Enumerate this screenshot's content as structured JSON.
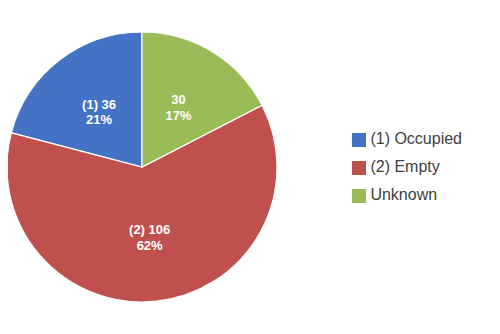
{
  "chart_data": {
    "type": "pie",
    "categories": [
      "(1) Occupied",
      "(2) Empty",
      "Unknown"
    ],
    "values": [
      36,
      106,
      30
    ],
    "value_labels": [
      "(1) 36",
      "(2) 106",
      "30"
    ],
    "percentages": [
      21,
      62,
      17
    ],
    "percentage_labels": [
      "21%",
      "62%",
      "17%"
    ],
    "colors": [
      "#4472C4",
      "#C0504D",
      "#9BBB59"
    ],
    "legend": "right"
  }
}
